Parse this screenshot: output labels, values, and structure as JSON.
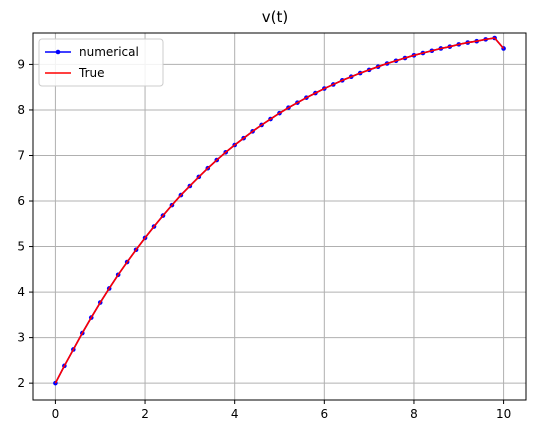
{
  "chart_data": {
    "type": "line",
    "title": "v(t)",
    "xlabel": "",
    "ylabel": "",
    "xlim": [
      -0.5,
      10.5
    ],
    "ylim": [
      1.63,
      9.69
    ],
    "xticks": [
      0,
      2,
      4,
      6,
      8,
      10
    ],
    "yticks": [
      2,
      3,
      4,
      5,
      6,
      7,
      8,
      9
    ],
    "grid": true,
    "legend_position": "top-left",
    "x": [
      0.0,
      0.2,
      0.4,
      0.6,
      0.8,
      1.0,
      1.2,
      1.4,
      1.6,
      1.8,
      2.0,
      2.2,
      2.4,
      2.6,
      2.8,
      3.0,
      3.2,
      3.4,
      3.6,
      3.8,
      4.0,
      4.2,
      4.4,
      4.6,
      4.8,
      5.0,
      5.2,
      5.4,
      5.6,
      5.8,
      6.0,
      6.2,
      6.4,
      6.6,
      6.8,
      7.0,
      7.2,
      7.4,
      7.6,
      7.8,
      8.0,
      8.2,
      8.4,
      8.6,
      8.8,
      9.0,
      9.2,
      9.4,
      9.6,
      9.8,
      10.0
    ],
    "series": [
      {
        "name": "numerical",
        "color": "#0000ff",
        "marker": "dot",
        "values": [
          2.0,
          2.38,
          2.74,
          3.1,
          3.44,
          3.77,
          4.08,
          4.38,
          4.66,
          4.93,
          5.19,
          5.44,
          5.68,
          5.91,
          6.13,
          6.33,
          6.53,
          6.72,
          6.9,
          7.07,
          7.23,
          7.38,
          7.53,
          7.67,
          7.8,
          7.93,
          8.05,
          8.16,
          8.27,
          8.37,
          8.47,
          8.56,
          8.65,
          8.73,
          8.81,
          8.88,
          8.95,
          9.02,
          9.08,
          9.14,
          9.2,
          9.25,
          9.3,
          9.35,
          9.39,
          9.44,
          9.48,
          9.51,
          9.55,
          9.58,
          9.35
        ]
      },
      {
        "name": "True",
        "color": "#ff0000",
        "marker": "none",
        "values": [
          2.0,
          2.38,
          2.74,
          3.1,
          3.44,
          3.77,
          4.08,
          4.38,
          4.66,
          4.93,
          5.19,
          5.44,
          5.68,
          5.91,
          6.13,
          6.33,
          6.53,
          6.72,
          6.9,
          7.07,
          7.23,
          7.38,
          7.53,
          7.67,
          7.8,
          7.93,
          8.05,
          8.16,
          8.27,
          8.37,
          8.47,
          8.56,
          8.65,
          8.73,
          8.81,
          8.88,
          8.95,
          9.02,
          9.08,
          9.14,
          9.2,
          9.25,
          9.3,
          9.35,
          9.39,
          9.44,
          9.48,
          9.51,
          9.55,
          9.58,
          9.35
        ]
      }
    ]
  }
}
